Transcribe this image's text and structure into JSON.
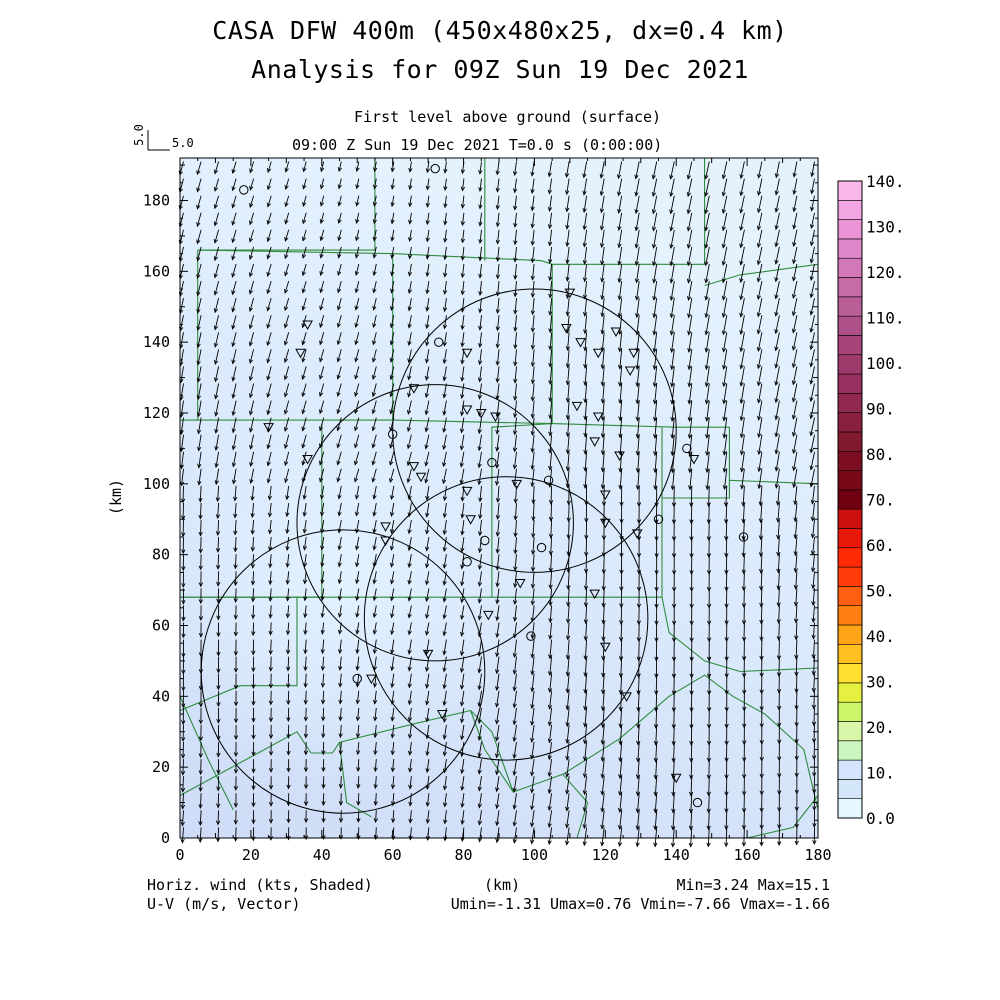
{
  "header": {
    "title_line1": "CASA DFW 400m (450x480x25, dx=0.4 km)",
    "title_line2": "Analysis for 09Z Sun 19 Dec 2021",
    "subtitle_level": "First level above ground (surface)",
    "subtitle_time": "09:00 Z Sun 19 Dec 2021    T=0.0 s (0:00:00)"
  },
  "reference_vector": {
    "label_x": "5.0",
    "label_y": "5.0"
  },
  "axes": {
    "x_label": "(km)",
    "y_label": "(km)",
    "x_range": [
      0,
      180
    ],
    "y_range": [
      0,
      192
    ],
    "x_ticks": [
      "0",
      "20",
      "40",
      "60",
      "80",
      "100",
      "120",
      "140",
      "160",
      "180"
    ],
    "y_ticks": [
      "0",
      "20",
      "40",
      "60",
      "80",
      "100",
      "120",
      "140",
      "160",
      "180"
    ]
  },
  "colorbar": {
    "labels": [
      "0.0",
      "10.",
      "20.",
      "30.",
      "40.",
      "50.",
      "60.",
      "70.",
      "80.",
      "90.",
      "100.",
      "110.",
      "120.",
      "130.",
      "140."
    ],
    "colors": [
      "#e6f7ff",
      "#d3e6fa",
      "#d4e4ff",
      "#ccf5c0",
      "#d9f7a8",
      "#ccf56a",
      "#e6f040",
      "#ffe030",
      "#ffc020",
      "#ffa518",
      "#ff8010",
      "#ff6010",
      "#ff3c0a",
      "#ff2a06",
      "#e8180a",
      "#cc1010",
      "#6e0010",
      "#780818",
      "#7d0e22",
      "#821a2e",
      "#8a2040",
      "#902850",
      "#983060",
      "#9e3a6c",
      "#a8447a",
      "#b05088",
      "#ba5e98",
      "#c66aa8",
      "#d278b8",
      "#de86c8",
      "#ea94d6",
      "#f4a6e2",
      "#f8b8ec"
    ]
  },
  "footer": {
    "left_line1": "Horiz. wind (kts, Shaded)",
    "left_line2": "U-V (m/s, Vector)",
    "center": "(km)",
    "right_line1": "Min=3.24 Max=15.1",
    "right_line2": "Umin=-1.31 Umax=0.76 Vmin=-7.66 Vmax=-1.66"
  },
  "field": {
    "min": 3.24,
    "max": 15.1,
    "umin": -1.31,
    "umax": 0.76,
    "vmin": -7.66,
    "vmax": -1.66
  },
  "radar_rings_km": [
    {
      "cx": 100,
      "cy": 115,
      "r": 40
    },
    {
      "cx": 72,
      "cy": 89,
      "r": 39
    },
    {
      "cx": 92,
      "cy": 62,
      "r": 40
    },
    {
      "cx": 46,
      "cy": 47,
      "r": 40
    }
  ],
  "stations": {
    "circles": [
      [
        18,
        183
      ],
      [
        72,
        189
      ],
      [
        73,
        140
      ],
      [
        60,
        114
      ],
      [
        88,
        106
      ],
      [
        104,
        101
      ],
      [
        86,
        84
      ],
      [
        102,
        82
      ],
      [
        81,
        78
      ],
      [
        99,
        57
      ],
      [
        135,
        90
      ],
      [
        159,
        85
      ],
      [
        50,
        45
      ],
      [
        146,
        10
      ],
      [
        143,
        110
      ]
    ],
    "triangles": [
      [
        110,
        154
      ],
      [
        109,
        144
      ],
      [
        113,
        140
      ],
      [
        118,
        137
      ],
      [
        123,
        143
      ],
      [
        128,
        137
      ],
      [
        127,
        132
      ],
      [
        36,
        145
      ],
      [
        34,
        137
      ],
      [
        66,
        127
      ],
      [
        81,
        137
      ],
      [
        81,
        121
      ],
      [
        85,
        120
      ],
      [
        89,
        119
      ],
      [
        112,
        122
      ],
      [
        118,
        119
      ],
      [
        117,
        112
      ],
      [
        25,
        116
      ],
      [
        36,
        107
      ],
      [
        66,
        105
      ],
      [
        68,
        102
      ],
      [
        81,
        98
      ],
      [
        95,
        100
      ],
      [
        120,
        97
      ],
      [
        120,
        89
      ],
      [
        82,
        90
      ],
      [
        58,
        88
      ],
      [
        58,
        84
      ],
      [
        129,
        86
      ],
      [
        96,
        72
      ],
      [
        117,
        69
      ],
      [
        87,
        63
      ],
      [
        120,
        54
      ],
      [
        70,
        52
      ],
      [
        54,
        45
      ],
      [
        74,
        35
      ],
      [
        126,
        40
      ],
      [
        140,
        17
      ],
      [
        124,
        108
      ],
      [
        145,
        107
      ]
    ]
  },
  "county_lines_km": [
    [
      [
        5,
        166
      ],
      [
        55,
        166
      ],
      [
        55,
        192
      ]
    ],
    [
      [
        5,
        166
      ],
      [
        60,
        165
      ],
      [
        60,
        118
      ]
    ],
    [
      [
        0,
        118
      ],
      [
        60,
        118
      ],
      [
        105,
        117
      ]
    ],
    [
      [
        5,
        166
      ],
      [
        5,
        118
      ]
    ],
    [
      [
        60,
        165
      ],
      [
        102,
        163
      ],
      [
        105,
        162
      ],
      [
        105,
        117
      ]
    ],
    [
      [
        105,
        162
      ],
      [
        148,
        162
      ],
      [
        148,
        192
      ]
    ],
    [
      [
        148,
        156
      ],
      [
        158,
        159
      ],
      [
        180,
        162
      ]
    ],
    [
      [
        86,
        163
      ],
      [
        86,
        192
      ]
    ],
    [
      [
        105,
        117
      ],
      [
        140,
        116
      ],
      [
        155,
        116
      ],
      [
        155,
        101
      ],
      [
        180,
        100
      ]
    ],
    [
      [
        105,
        117
      ],
      [
        88,
        116
      ],
      [
        88,
        68
      ]
    ],
    [
      [
        0,
        68
      ],
      [
        40,
        68
      ],
      [
        40,
        117
      ]
    ],
    [
      [
        0,
        68
      ],
      [
        88,
        68
      ],
      [
        136,
        68
      ],
      [
        136,
        116
      ]
    ],
    [
      [
        136,
        96
      ],
      [
        155,
        96
      ],
      [
        155,
        101
      ]
    ],
    [
      [
        33,
        68
      ],
      [
        33,
        43
      ],
      [
        17,
        43
      ],
      [
        0,
        36
      ]
    ],
    [
      [
        0,
        40
      ],
      [
        8,
        22
      ],
      [
        15,
        8
      ]
    ],
    [
      [
        0,
        12
      ],
      [
        33,
        30
      ],
      [
        37,
        24
      ],
      [
        43,
        24
      ],
      [
        45,
        27
      ],
      [
        65,
        32
      ],
      [
        82,
        36
      ],
      [
        86,
        25
      ],
      [
        94,
        13
      ],
      [
        108,
        18
      ],
      [
        124,
        28
      ],
      [
        138,
        40
      ],
      [
        148,
        46
      ],
      [
        156,
        40
      ],
      [
        165,
        35
      ],
      [
        176,
        25
      ],
      [
        180,
        8
      ]
    ],
    [
      [
        136,
        68
      ],
      [
        138,
        58
      ],
      [
        148,
        50
      ],
      [
        158,
        47
      ],
      [
        180,
        48
      ]
    ],
    [
      [
        45,
        27
      ],
      [
        47,
        10
      ],
      [
        54,
        6
      ]
    ],
    [
      [
        82,
        36
      ],
      [
        88,
        30
      ],
      [
        94,
        13
      ]
    ],
    [
      [
        108,
        18
      ],
      [
        115,
        10
      ],
      [
        112,
        0
      ]
    ],
    [
      [
        160,
        0
      ],
      [
        173,
        3
      ],
      [
        180,
        12
      ]
    ]
  ]
}
